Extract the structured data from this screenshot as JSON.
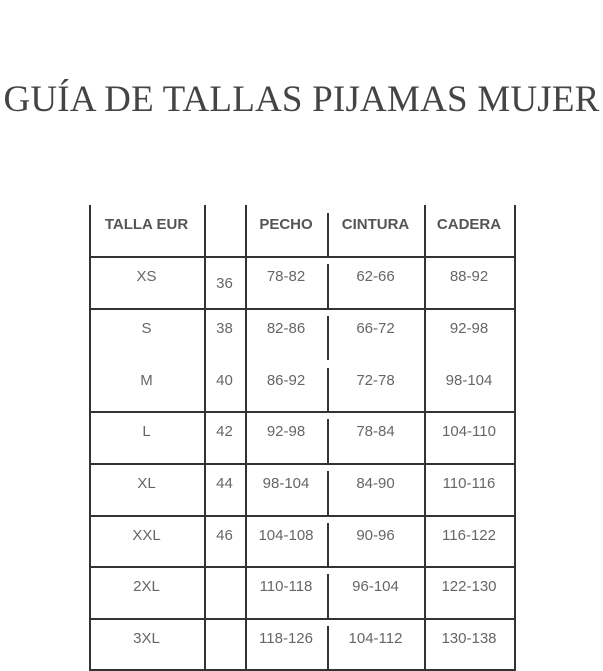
{
  "title": "GUÍA DE TALLAS PIJAMAS MUJER",
  "table": {
    "headers": [
      "TALLA EUR",
      "",
      "PECHO",
      "CINTURA",
      "CADERA"
    ],
    "rows": [
      [
        "XS",
        "36",
        "78-82",
        "62-66",
        "88-92"
      ],
      [
        "S",
        "38",
        "82-86",
        "66-72",
        "92-98"
      ],
      [
        "M",
        "40",
        "86-92",
        "72-78",
        "98-104"
      ],
      [
        "L",
        "42",
        "92-98",
        "78-84",
        "104-110"
      ],
      [
        "XL",
        "44",
        "98-104",
        "84-90",
        "110-116"
      ],
      [
        "XXL",
        "46",
        "104-108",
        "90-96",
        "116-122"
      ],
      [
        "2XL",
        "",
        "110-118",
        "96-104",
        "122-130"
      ],
      [
        "3XL",
        "",
        "118-126",
        "104-112",
        "130-138"
      ]
    ]
  }
}
